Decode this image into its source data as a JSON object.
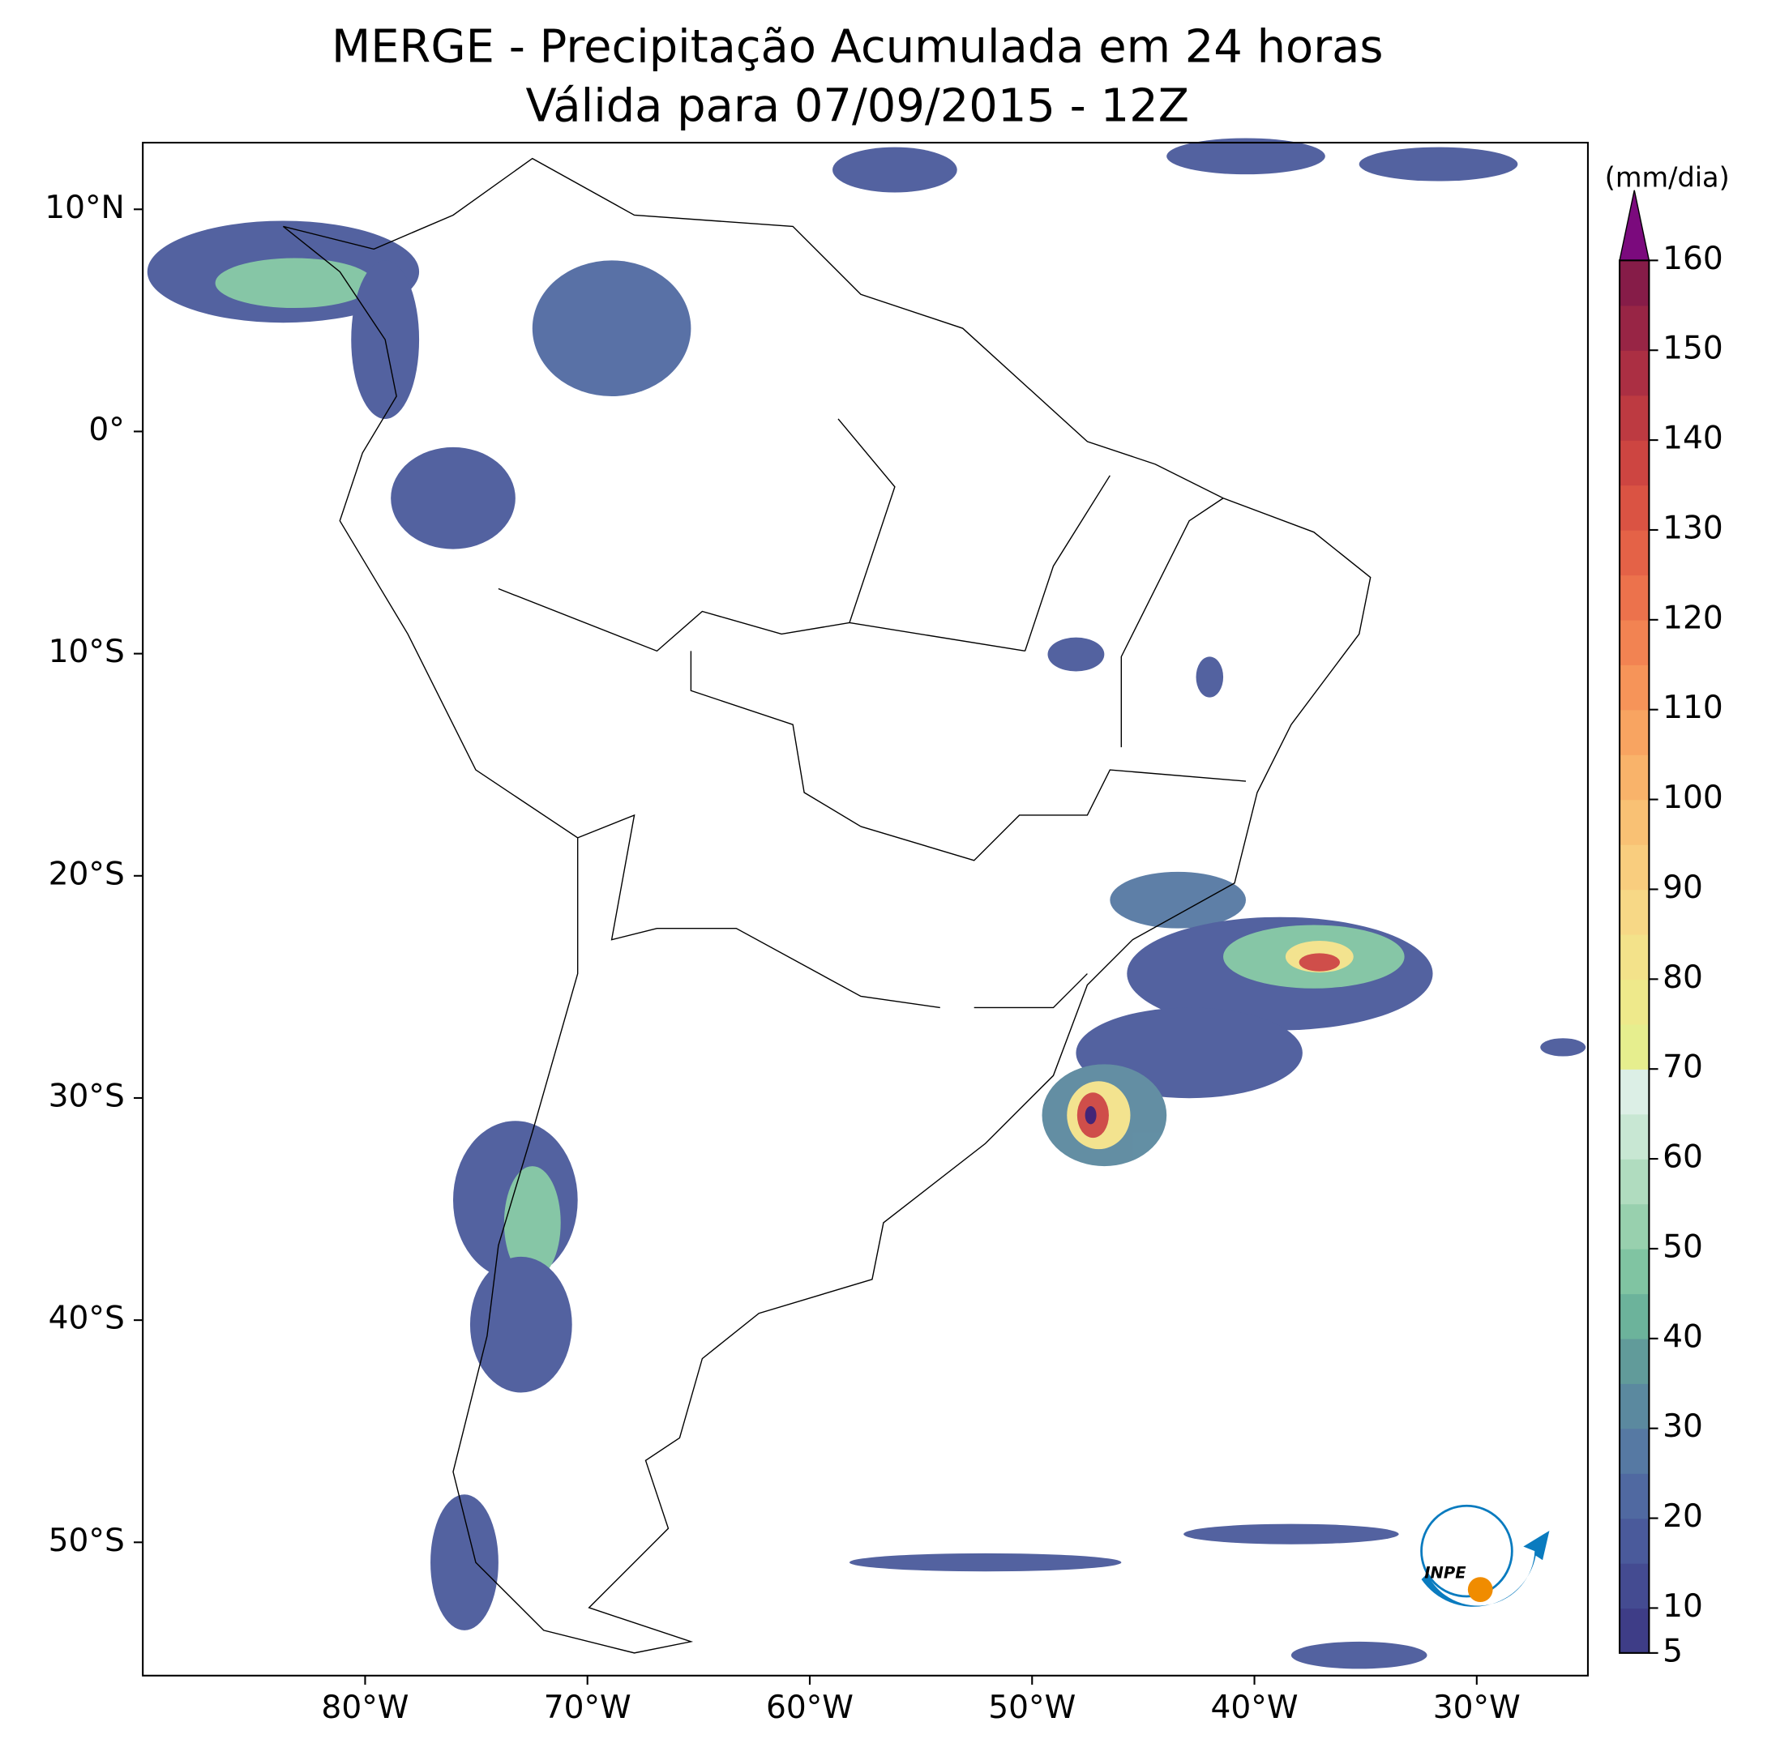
{
  "map": {
    "title": "MERGE - Precipitação Acumulada em 24 horas",
    "subtitle": "Válida para 07/09/2015 - 12Z",
    "lonlim": [
      -90,
      -25
    ],
    "latlim": [
      -56,
      13
    ],
    "lon_ticks": [
      {
        "value": -80,
        "label": "80°W"
      },
      {
        "value": -70,
        "label": "70°W"
      },
      {
        "value": -60,
        "label": "60°W"
      },
      {
        "value": -50,
        "label": "50°W"
      },
      {
        "value": -40,
        "label": "40°W"
      },
      {
        "value": -30,
        "label": "30°W"
      }
    ],
    "lat_ticks": [
      {
        "value": 10,
        "label": "10°N"
      },
      {
        "value": 0,
        "label": "0°"
      },
      {
        "value": -10,
        "label": "10°S"
      },
      {
        "value": -20,
        "label": "20°S"
      },
      {
        "value": -30,
        "label": "30°S"
      },
      {
        "value": -40,
        "label": "40°S"
      },
      {
        "value": -50,
        "label": "50°S"
      }
    ],
    "colorbar": {
      "label": "(mm/dia)",
      "lim": [
        5,
        160
      ],
      "ticks": [
        5,
        10,
        20,
        30,
        40,
        50,
        60,
        70,
        80,
        90,
        100,
        110,
        120,
        130,
        140,
        150,
        160
      ],
      "colors": [
        "#3e3d87",
        "#444b91",
        "#4a5a9b",
        "#5069a1",
        "#5679a3",
        "#5b899f",
        "#619b9a",
        "#6cb39b",
        "#80c4a2",
        "#98d0ae",
        "#b0dcbf",
        "#c8e7d3",
        "#dcefe6",
        "#e6ee8e",
        "#eee98b",
        "#f3e28a",
        "#f7d886",
        "#f9cd7e",
        "#f9c174",
        "#f9b36a",
        "#f8a461",
        "#f69459",
        "#f28352",
        "#ec724c",
        "#e46247",
        "#da5343",
        "#cd4541",
        "#bd3a41",
        "#ab2f43",
        "#982545",
        "#861c48"
      ],
      "extend_color": "#7b0a7d"
    },
    "logo_text": "INPE"
  }
}
